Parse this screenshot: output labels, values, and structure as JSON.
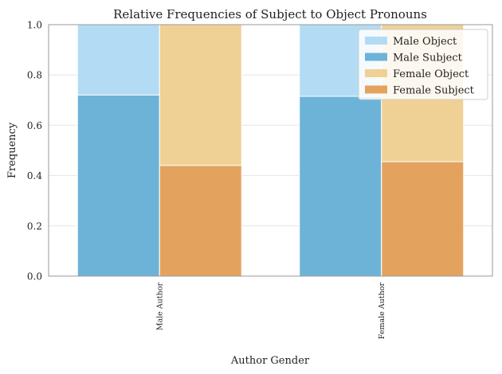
{
  "chart_data": {
    "type": "bar",
    "stacked_overlay": true,
    "title": "Relative Frequencies of Subject to Object Pronouns",
    "xlabel": "Author Gender",
    "ylabel": "Frequency",
    "categories": [
      "Male Author",
      "Female Author"
    ],
    "ylim": [
      0,
      1.0
    ],
    "yticks": [
      "0.0",
      "0.2",
      "0.4",
      "0.6",
      "0.8",
      "1.0"
    ],
    "grid": true,
    "legend_position": "top-right",
    "series": [
      {
        "name": "Male Object",
        "values": [
          1.0,
          1.0
        ],
        "color": "#b3dcf4",
        "group": "male"
      },
      {
        "name": "Male Subject",
        "values": [
          0.72,
          0.715
        ],
        "color": "#6db3d8",
        "group": "male"
      },
      {
        "name": "Female Object",
        "values": [
          1.0,
          1.0
        ],
        "color": "#efd196",
        "group": "female"
      },
      {
        "name": "Female Subject",
        "values": [
          0.44,
          0.455
        ],
        "color": "#e3a35f",
        "group": "female"
      }
    ]
  }
}
